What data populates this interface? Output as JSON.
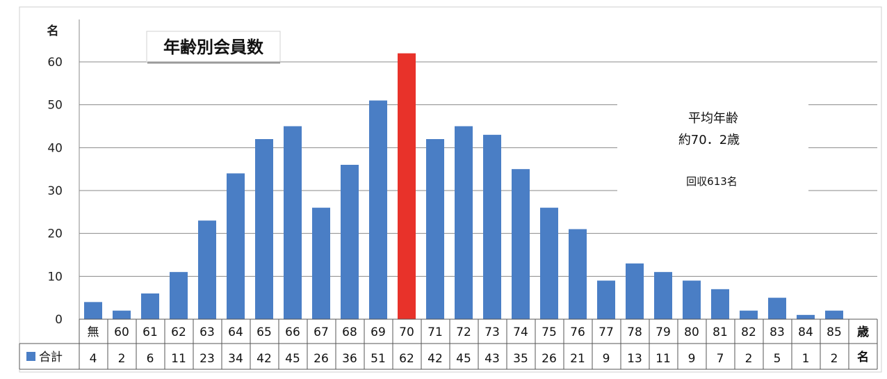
{
  "chart_data": {
    "type": "bar",
    "title": "年齢別会員数",
    "y_unit_label": "名",
    "x_unit_label": "歳",
    "table_unit_label": "名",
    "legend_label": "合計",
    "categories": [
      "無",
      "60",
      "61",
      "62",
      "63",
      "64",
      "65",
      "66",
      "67",
      "68",
      "69",
      "70",
      "71",
      "72",
      "73",
      "74",
      "75",
      "76",
      "77",
      "78",
      "79",
      "80",
      "81",
      "82",
      "83",
      "84",
      "85"
    ],
    "values": [
      4,
      2,
      6,
      11,
      23,
      34,
      42,
      45,
      26,
      36,
      51,
      62,
      42,
      45,
      43,
      35,
      26,
      21,
      9,
      13,
      11,
      9,
      7,
      2,
      5,
      1,
      2
    ],
    "highlight_category": "70",
    "ylim": [
      0,
      60
    ],
    "y_ticks": [
      0,
      10,
      20,
      30,
      40,
      50,
      60
    ],
    "grid": true,
    "legend_position": "bottom-left",
    "colors": {
      "bar": "#4a7ec5",
      "highlight": "#e8322a",
      "grid": "#888888"
    },
    "annotations": {
      "avg_label": "平均年齢",
      "avg_value": "約70．2歳",
      "collected": "回収613名"
    }
  }
}
